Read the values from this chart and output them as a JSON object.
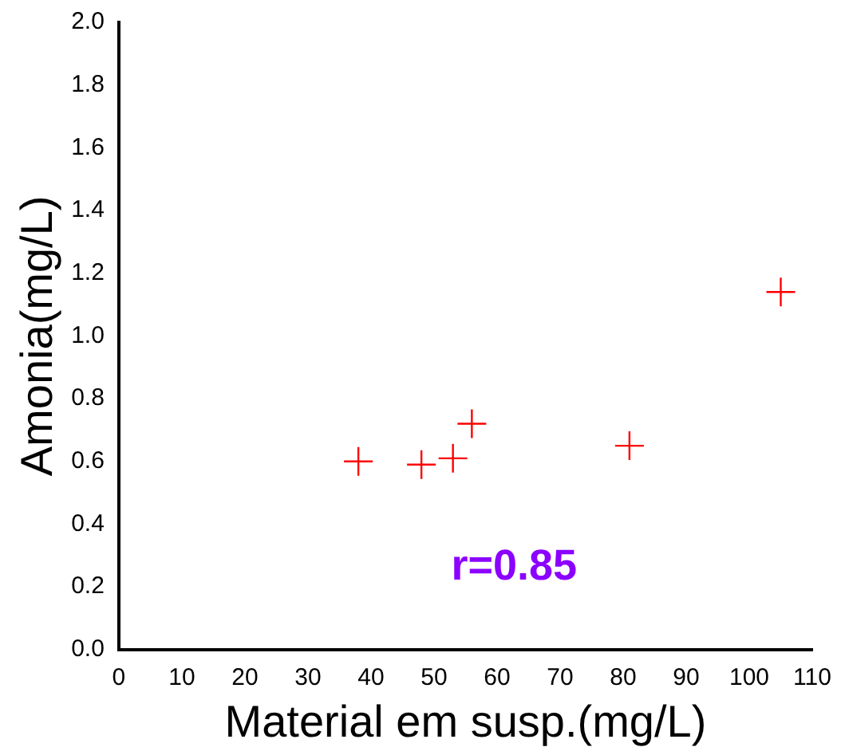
{
  "chart_data": {
    "type": "scatter",
    "xlabel": "Material em susp.(mg/L)",
    "ylabel": "Amonia(mg/L)",
    "x": [
      38,
      48,
      53,
      56,
      81,
      105
    ],
    "series": [
      {
        "color": "#ff0000",
        "values": [
          0.6,
          0.59,
          0.61,
          0.72,
          0.65,
          1.14
        ]
      }
    ],
    "xlim": [
      0,
      110
    ],
    "xticks": [
      0,
      10,
      20,
      30,
      40,
      50,
      60,
      70,
      80,
      90,
      100,
      110
    ],
    "ylim": [
      0,
      2
    ],
    "yticks": [
      {
        "value": 0,
        "label": "0.0"
      },
      {
        "value": 0.2,
        "label": "0.2"
      },
      {
        "value": 0.4,
        "label": "0.4"
      },
      {
        "value": 0.6,
        "label": "0.6"
      },
      {
        "value": 0.8,
        "label": "0.8"
      },
      {
        "value": 1,
        "label": "1.0"
      },
      {
        "value": 1.2,
        "label": "1.2"
      },
      {
        "value": 1.4,
        "label": "1.4"
      },
      {
        "value": 1.6,
        "label": "1.6"
      },
      {
        "value": 1.8,
        "label": "1.8"
      },
      {
        "value": 2,
        "label": "2.0"
      }
    ],
    "annotations": [
      "r=0.85"
    ],
    "marker": "cross",
    "grid": false,
    "legend": false
  }
}
